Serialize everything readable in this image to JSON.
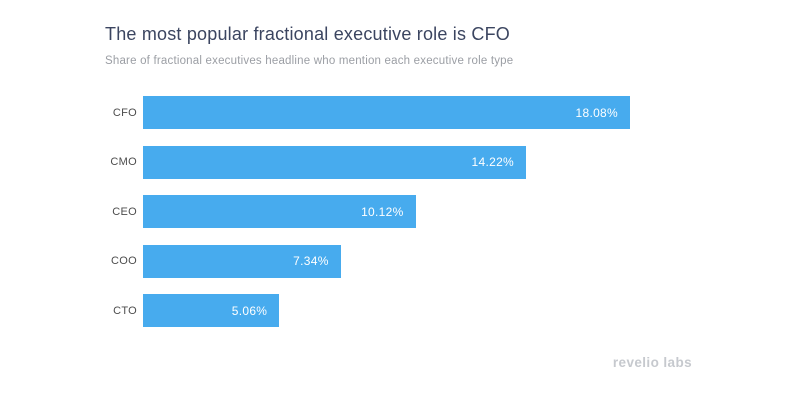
{
  "header": {
    "title": "The most popular fractional executive role is CFO",
    "subtitle": "Share of fractional executives headline who mention each executive role type"
  },
  "chart_data": {
    "type": "bar",
    "orientation": "horizontal",
    "title": "The most popular fractional executive role is CFO",
    "subtitle": "Share of fractional executives headline who mention each executive role type",
    "categories": [
      "CFO",
      "CMO",
      "CEO",
      "COO",
      "CTO"
    ],
    "values": [
      18.08,
      14.22,
      10.12,
      7.34,
      5.06
    ],
    "value_labels": [
      "18.08%",
      "14.22%",
      "10.12%",
      "7.34%",
      "5.06%"
    ],
    "xlim": [
      0,
      18.08
    ],
    "grid": false,
    "legend": "none",
    "bar_color": "#47abee",
    "value_label_color": "#ffffff",
    "title_color": "#3b4560",
    "subtitle_color": "#9b9ea4"
  },
  "footer": {
    "brand": "revelio labs"
  }
}
